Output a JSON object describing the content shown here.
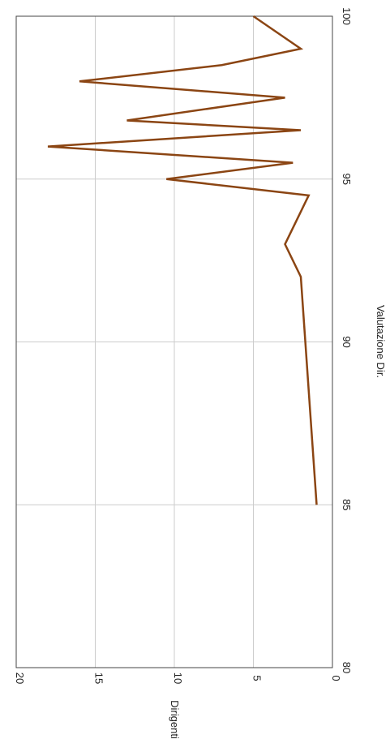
{
  "chart_data": {
    "type": "line",
    "orientation": "rotated-90-clockwise",
    "xlabel": "Valutazione Dir.",
    "ylabel": "Dirigenti",
    "xlim": [
      80,
      100
    ],
    "ylim": [
      0,
      20
    ],
    "xticks": [
      "80",
      "85",
      "90",
      "95",
      "100"
    ],
    "yticks": [
      "0",
      "5",
      "10",
      "15",
      "20"
    ],
    "grid": true,
    "colors": {
      "line": "#8B4513",
      "grid": "#cccccc",
      "frame": "#444444"
    },
    "x": [
      85,
      92,
      93,
      94,
      94.5,
      95,
      95.5,
      96,
      96.5,
      96.8,
      97.5,
      98,
      98.5,
      99,
      100
    ],
    "y": [
      1,
      2,
      3,
      2,
      1.5,
      10.5,
      2.5,
      18,
      2,
      13,
      3,
      16,
      7,
      2,
      5
    ]
  }
}
